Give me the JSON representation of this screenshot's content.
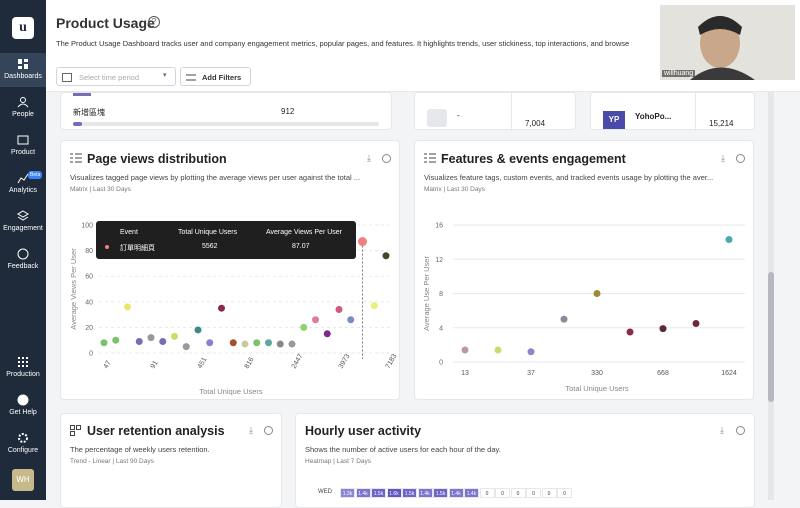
{
  "sidebar": {
    "logo": "u",
    "items": [
      {
        "label": "Dashboards"
      },
      {
        "label": "People"
      },
      {
        "label": "Product"
      },
      {
        "label": "Analytics",
        "badge": "Beta"
      },
      {
        "label": "Engagement"
      },
      {
        "label": "Feedback"
      }
    ],
    "bottom": [
      "Production",
      "Get Help",
      "Configure"
    ],
    "avatar": "WH"
  },
  "header": {
    "title": "Product Usage",
    "description": "The Product Usage Dashboard tracks user and company engagement metrics, popular pages, and features. It highlights trends, user stickiness, top interactions, and browse"
  },
  "toolbar": {
    "time_placeholder": "Select time period",
    "filter_button": "Add Filters"
  },
  "video": {
    "name": "willhuang"
  },
  "top_cards": [
    {
      "label": "新增區塊",
      "value": "912"
    },
    {
      "label": "-",
      "value": "7,004"
    },
    {
      "label": "YohoPo...",
      "value": "15,214",
      "logo": "YP"
    }
  ],
  "page_views": {
    "title": "Page views distribution",
    "subtitle": "Visualizes tagged page views by plotting the average views per user against the total ...",
    "meta": "Matrix | Last 30 Days",
    "y_label": "Average Views Per User",
    "x_label": "Total Unique Users",
    "ylim": [
      0,
      100
    ],
    "yticks": [
      0,
      20,
      40,
      60,
      80,
      100
    ],
    "x_tick_labels": [
      47,
      91,
      451,
      816,
      2447,
      3973,
      7183
    ],
    "values": [
      8,
      10,
      36,
      9,
      12,
      9,
      13,
      5,
      18,
      8,
      35,
      8,
      7,
      8,
      8,
      7,
      7,
      20,
      26,
      15,
      34,
      26,
      87.07,
      37,
      76
    ],
    "colors": [
      "#7ac36a",
      "#7ac36a",
      "#e6e66a",
      "#7b6bb5",
      "#999999",
      "#7b6bb5",
      "#c5e06a",
      "#999999",
      "#3a8a8a",
      "#8a7fc9",
      "#8b2a4a",
      "#a0522d",
      "#c9c9a0",
      "#7ac36a",
      "#5aa8a0",
      "#888888",
      "#999999",
      "#8fd16a",
      "#e07a9a",
      "#7a2a8a",
      "#d05a7a",
      "#7a8ac9",
      "#f08080",
      "#e6f07a",
      "#3a4a2a"
    ],
    "tooltip": {
      "headers": [
        "Event",
        "Total Unique Users",
        "Average Views Per User"
      ],
      "event": "訂單明細頁",
      "users": 5562,
      "average": 87.07
    }
  },
  "features": {
    "title": "Features & events engagement",
    "subtitle": "Visualizes feature tags, custom events, and tracked events usage by plotting the aver...",
    "meta": "Matrix | Last 30 Days",
    "y_label": "Average Use Per User",
    "x_label": "Total Unique Users",
    "ylim": [
      0,
      16
    ],
    "yticks": [
      0,
      4,
      8,
      12,
      16
    ],
    "x_tick_labels": [
      13,
      37,
      330,
      668,
      1624
    ],
    "values": [
      1.4,
      1.4,
      1.2,
      5,
      8,
      3.5,
      3.9,
      4.5,
      14.3
    ],
    "colors": [
      "#b89aa0",
      "#c5e06a",
      "#8a88c9",
      "#8a8a9a",
      "#9a8a3a",
      "#8b2a4a",
      "#5a2a3a",
      "#6a2a3a",
      "#4aa8b0"
    ]
  },
  "retention": {
    "title": "User retention analysis",
    "subtitle": "The percentage of weekly users retention.",
    "meta": "Trend - Linear | Last 90 Days"
  },
  "hourly": {
    "title": "Hourly user activity",
    "subtitle": "Shows the number of active users for each hour of the day.",
    "meta": "Heatmap | Last 7 Days",
    "row": "WED",
    "cells": [
      "1.3k",
      "1.4k",
      "1.5k",
      "1.6k",
      "1.5k",
      "1.4k",
      "1.5k",
      "1.4k",
      "1.4k",
      "0",
      "0",
      "0",
      "0",
      "0",
      "0"
    ]
  }
}
